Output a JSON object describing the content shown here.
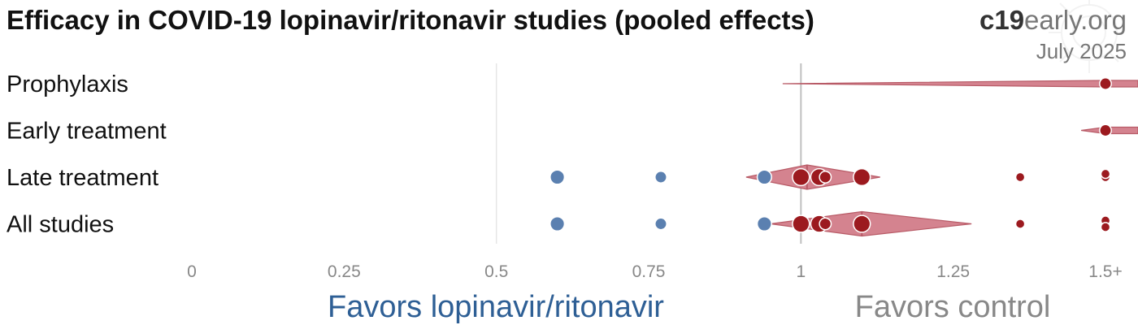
{
  "header": {
    "title": "Efficacy in COVID-19 lopinavir/ritonavir studies (pooled effects)",
    "brand_bold": "c19",
    "brand_light": "early.org",
    "date": "July 2025"
  },
  "colors": {
    "favors_treatment": "#2e5f95",
    "favors_control": "#888888",
    "point_positive": "#9c1a1f",
    "point_negative": "#5b80b0",
    "diamond_fill": "#d4838f",
    "diamond_stroke": "#b85a66",
    "reference_line": "#c0c0c0"
  },
  "chart_data": {
    "type": "scatter",
    "title": "Efficacy in COVID-19 lopinavir/ritonavir studies (pooled effects)",
    "xlim": [
      0,
      1.5
    ],
    "xticks": [
      0,
      0.25,
      0.5,
      0.75,
      1,
      1.25,
      1.5
    ],
    "xtick_labels": [
      "0",
      "0.25",
      "0.5",
      "0.75",
      "1",
      "1.25",
      "1.5+"
    ],
    "reference_value": 1,
    "favors_left_label": "Favors lopinavir/ritonavir",
    "favors_right_label": "Favors control",
    "rows": [
      {
        "label": "Prophylaxis",
        "pooled": {
          "estimate": 1.5,
          "lower": 0.97,
          "upper": 1.5
        },
        "studies": [
          {
            "value": 1.5,
            "weight": 2
          }
        ]
      },
      {
        "label": "Early treatment",
        "pooled": {
          "estimate": 1.5,
          "lower": 1.46,
          "upper": 1.5
        },
        "studies": [
          {
            "value": 1.5,
            "weight": 2
          }
        ]
      },
      {
        "label": "Late treatment",
        "pooled": {
          "estimate": 1.01,
          "lower": 0.91,
          "upper": 1.13
        },
        "studies": [
          {
            "value": 0.6,
            "weight": 3
          },
          {
            "value": 0.77,
            "weight": 2
          },
          {
            "value": 0.94,
            "weight": 3
          },
          {
            "value": 1.0,
            "weight": 4
          },
          {
            "value": 1.03,
            "weight": 4
          },
          {
            "value": 1.04,
            "weight": 2
          },
          {
            "value": 1.1,
            "weight": 4
          },
          {
            "value": 1.36,
            "weight": 1
          },
          {
            "value": 1.5,
            "weight": 1
          },
          {
            "value": 1.5,
            "weight": 1
          }
        ]
      },
      {
        "label": "All studies",
        "pooled": {
          "estimate": 1.1,
          "lower": 0.95,
          "upper": 1.28
        },
        "studies": [
          {
            "value": 0.6,
            "weight": 3
          },
          {
            "value": 0.77,
            "weight": 2
          },
          {
            "value": 0.94,
            "weight": 3
          },
          {
            "value": 1.0,
            "weight": 4
          },
          {
            "value": 1.03,
            "weight": 4
          },
          {
            "value": 1.04,
            "weight": 2
          },
          {
            "value": 1.1,
            "weight": 4
          },
          {
            "value": 1.36,
            "weight": 1
          },
          {
            "value": 1.5,
            "weight": 1
          },
          {
            "value": 1.5,
            "weight": 1
          },
          {
            "value": 1.5,
            "weight": 1
          }
        ]
      }
    ]
  }
}
